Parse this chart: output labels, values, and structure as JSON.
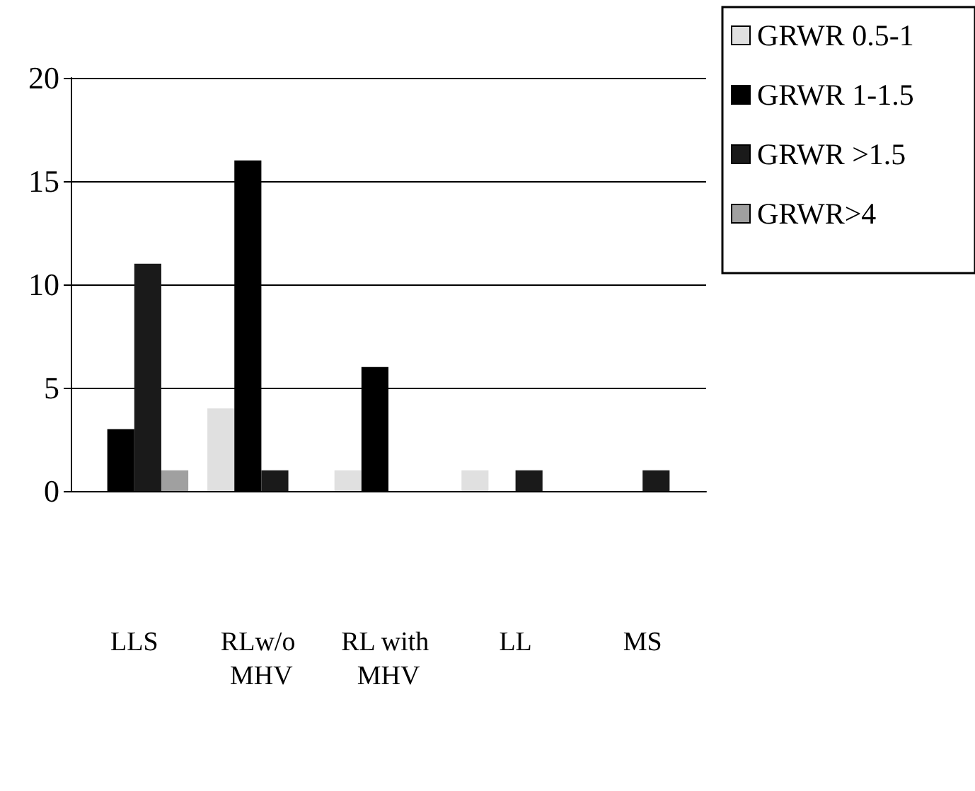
{
  "chart_data": {
    "type": "bar",
    "categories": [
      "LLS",
      "RLw/o MHV",
      "RL with MHV",
      "LL",
      "MS"
    ],
    "series": [
      {
        "name": "GRWR 0.5-1",
        "color": "#e0e0e0",
        "values": [
          0,
          4,
          1,
          1,
          0
        ]
      },
      {
        "name": "GRWR 1-1.5",
        "color": "#000000",
        "values": [
          3,
          16,
          6,
          0,
          0
        ]
      },
      {
        "name": "GRWR >1.5",
        "color": "#1a1a1a",
        "values": [
          11,
          1,
          0,
          1,
          1
        ]
      },
      {
        "name": "GRWR>4",
        "color": "#a0a0a0",
        "values": [
          1,
          0,
          0,
          0,
          0
        ]
      }
    ],
    "ylim": [
      0,
      20
    ],
    "yticks": [
      0,
      5,
      10,
      15,
      20
    ],
    "grid": "y",
    "legend": "top right"
  }
}
